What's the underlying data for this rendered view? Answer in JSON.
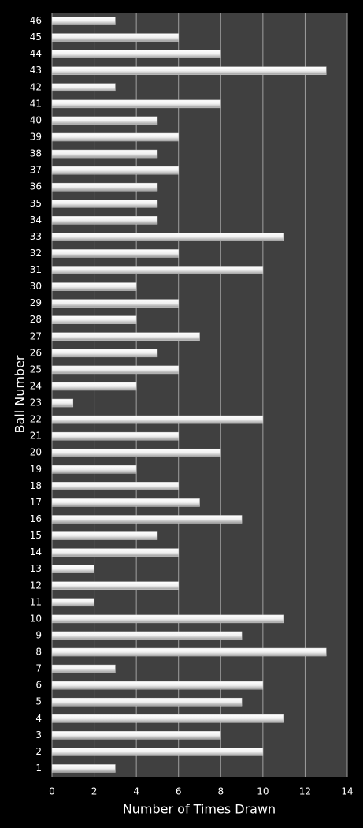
{
  "chart_data": {
    "type": "bar",
    "orientation": "horizontal",
    "x_label": "Number of Times Drawn",
    "y_label": "Ball Number",
    "categories": [
      "1",
      "2",
      "3",
      "4",
      "5",
      "6",
      "7",
      "8",
      "9",
      "10",
      "11",
      "12",
      "13",
      "14",
      "15",
      "16",
      "17",
      "18",
      "19",
      "20",
      "21",
      "22",
      "23",
      "24",
      "25",
      "26",
      "27",
      "28",
      "29",
      "30",
      "31",
      "32",
      "33",
      "34",
      "35",
      "36",
      "37",
      "38",
      "39",
      "40",
      "41",
      "42",
      "43",
      "44",
      "45",
      "46"
    ],
    "values": [
      3,
      10,
      8,
      11,
      9,
      10,
      3,
      13,
      9,
      11,
      2,
      6,
      2,
      6,
      5,
      9,
      7,
      6,
      4,
      8,
      6,
      10,
      1,
      4,
      6,
      5,
      7,
      4,
      6,
      4,
      10,
      6,
      11,
      5,
      5,
      5,
      6,
      5,
      6,
      5,
      8,
      3,
      13,
      8,
      6,
      3
    ],
    "color": "#ffffff",
    "xlim": [
      0,
      14
    ],
    "xticks": [
      0,
      2,
      4,
      6,
      8,
      10,
      12,
      14
    ],
    "grid": true
  }
}
